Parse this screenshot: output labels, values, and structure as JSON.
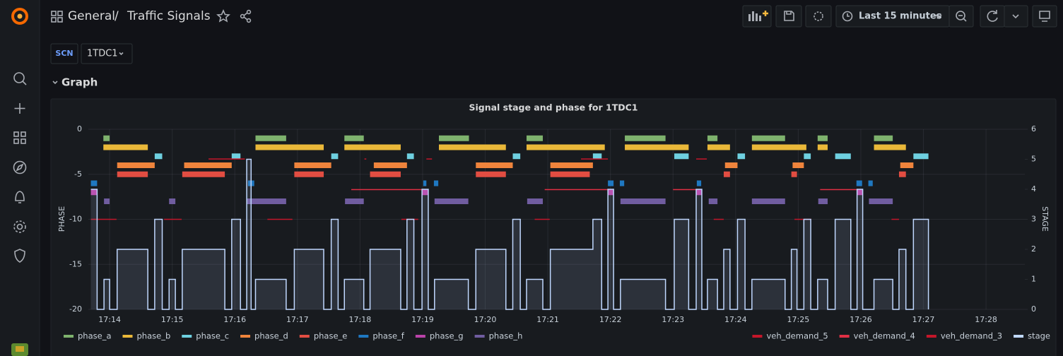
{
  "header": {
    "breadcrumb": [
      "General",
      "Traffic Signals"
    ],
    "separator": "/",
    "time_range": "Last 15 minutes"
  },
  "variables": [
    {
      "label": "SCN",
      "value": "1TDC1"
    }
  ],
  "row": {
    "title": "Graph"
  },
  "chart_data": {
    "type": "timeline",
    "title": "Signal stage and phase for 1TDC1",
    "ylabel": "PHASE",
    "y2label": "STAGE",
    "xlim": [
      13.66,
      28.62
    ],
    "xticks": [
      {
        "value": 14,
        "label": "17:14"
      },
      {
        "value": 15,
        "label": "17:15"
      },
      {
        "value": 16,
        "label": "17:16"
      },
      {
        "value": 17,
        "label": "17:17"
      },
      {
        "value": 18,
        "label": "17:18"
      },
      {
        "value": 19,
        "label": "17:19"
      },
      {
        "value": 20,
        "label": "17:20"
      },
      {
        "value": 21,
        "label": "17:21"
      },
      {
        "value": 22,
        "label": "17:22"
      },
      {
        "value": 23,
        "label": "17:23"
      },
      {
        "value": 24,
        "label": "17:24"
      },
      {
        "value": 25,
        "label": "17:25"
      },
      {
        "value": 26,
        "label": "17:26"
      },
      {
        "value": 27,
        "label": "17:27"
      },
      {
        "value": 28,
        "label": "17:28"
      }
    ],
    "ylim": [
      -20,
      0
    ],
    "yticks": [
      0,
      -5,
      -10,
      -15,
      -20
    ],
    "y2lim": [
      0,
      6
    ],
    "y2ticks": [
      0,
      1,
      2,
      3,
      4,
      5,
      6
    ],
    "grid": true,
    "legend": "bottom",
    "series": [
      {
        "name": "phase_a",
        "color": "#7EB26D",
        "style": "bar",
        "level": -1,
        "segments": [
          [
            13.9,
            14.0
          ],
          [
            16.33,
            16.82
          ],
          [
            17.75,
            18.06
          ],
          [
            19.26,
            19.74
          ],
          [
            20.66,
            20.92
          ],
          [
            22.23,
            22.88
          ],
          [
            23.55,
            23.71
          ],
          [
            24.26,
            24.79
          ],
          [
            25.31,
            25.47
          ],
          [
            26.21,
            26.51
          ]
        ]
      },
      {
        "name": "phase_b",
        "color": "#EAB839",
        "style": "bar",
        "level": -2,
        "segments": [
          [
            13.9,
            14.61
          ],
          [
            16.33,
            17.42
          ],
          [
            17.75,
            18.65
          ],
          [
            19.26,
            20.33
          ],
          [
            20.66,
            21.91
          ],
          [
            22.23,
            23.25
          ],
          [
            23.55,
            23.91
          ],
          [
            24.26,
            25.13
          ],
          [
            25.31,
            25.47
          ],
          [
            26.21,
            26.72
          ]
        ]
      },
      {
        "name": "phase_c",
        "color": "#6ED0E0",
        "style": "bar",
        "level": -3,
        "segments": [
          [
            14.72,
            14.84
          ],
          [
            15.95,
            16.09
          ],
          [
            17.54,
            17.65
          ],
          [
            18.75,
            18.86
          ],
          [
            20.44,
            20.56
          ],
          [
            21.72,
            21.86
          ],
          [
            23.02,
            23.25
          ],
          [
            24.03,
            24.15
          ],
          [
            25.09,
            25.2
          ],
          [
            25.59,
            25.84
          ],
          [
            26.84,
            27.08
          ]
        ]
      },
      {
        "name": "phase_d",
        "color": "#EF843C",
        "style": "bar",
        "level": -4,
        "segments": [
          [
            14.12,
            14.72
          ],
          [
            15.19,
            15.95
          ],
          [
            16.95,
            17.54
          ],
          [
            18.22,
            18.75
          ],
          [
            19.85,
            20.44
          ],
          [
            21.04,
            21.72
          ],
          [
            23.83,
            24.03
          ],
          [
            24.91,
            25.09
          ],
          [
            26.63,
            26.84
          ]
        ]
      },
      {
        "name": "phase_e",
        "color": "#E24D42",
        "style": "bar",
        "level": -5,
        "segments": [
          [
            14.12,
            14.61
          ],
          [
            15.16,
            15.84
          ],
          [
            16.95,
            17.42
          ],
          [
            18.16,
            18.65
          ],
          [
            19.85,
            20.33
          ],
          [
            21.04,
            21.67
          ],
          [
            23.81,
            23.91
          ],
          [
            24.89,
            24.98
          ],
          [
            26.61,
            26.72
          ]
        ]
      },
      {
        "name": "phase_f",
        "color": "#1F78C1",
        "style": "bar",
        "level": -6,
        "segments": [
          [
            13.7,
            13.8
          ],
          [
            16.21,
            16.31
          ],
          [
            19.01,
            19.06
          ],
          [
            19.18,
            19.25
          ],
          [
            21.96,
            22.05
          ],
          [
            22.15,
            22.22
          ],
          [
            23.38,
            23.45
          ],
          [
            25.93,
            26.02
          ],
          [
            26.12,
            26.19
          ]
        ]
      },
      {
        "name": "phase_g",
        "color": "#BA43A9",
        "style": "bar",
        "level": -7,
        "segments": [
          [
            13.7,
            13.8
          ],
          [
            18.99,
            19.09
          ],
          [
            21.96,
            22.05
          ],
          [
            23.37,
            23.46
          ],
          [
            25.94,
            26.03
          ]
        ]
      },
      {
        "name": "phase_h",
        "color": "#705DA0",
        "style": "bar",
        "level": -8,
        "segments": [
          [
            13.91,
            14.0
          ],
          [
            14.95,
            15.05
          ],
          [
            16.19,
            16.82
          ],
          [
            17.76,
            18.06
          ],
          [
            19.19,
            19.73
          ],
          [
            20.67,
            20.92
          ],
          [
            22.16,
            22.88
          ],
          [
            23.57,
            23.71
          ],
          [
            24.26,
            24.79
          ],
          [
            25.32,
            25.47
          ],
          [
            26.13,
            26.51
          ]
        ]
      },
      {
        "name": "veh_demand_5",
        "color": "#C4162A",
        "style": "line",
        "level": -3.3,
        "segments": [
          [
            15.58,
            16.16
          ],
          [
            18.07,
            18.1
          ],
          [
            19.06,
            19.15
          ],
          [
            21.53,
            21.96
          ],
          [
            23.37,
            23.54
          ]
        ]
      },
      {
        "name": "veh_demand_4",
        "color": "#E02F44",
        "style": "line",
        "level": -6.7,
        "segments": [
          [
            17.86,
            19.01
          ],
          [
            20.95,
            21.96
          ],
          [
            23.0,
            23.37
          ],
          [
            25.35,
            25.94
          ]
        ]
      },
      {
        "name": "veh_demand_3",
        "color": "#C4162A",
        "style": "line",
        "level": -10,
        "segments": [
          [
            13.7,
            14.11
          ],
          [
            14.87,
            15.15
          ],
          [
            16.52,
            16.92
          ],
          [
            18.66,
            18.93
          ],
          [
            20.79,
            21.03
          ],
          [
            23.65,
            23.81
          ],
          [
            24.94,
            25.21
          ],
          [
            26.49,
            26.61
          ]
        ]
      },
      {
        "name": "stage",
        "color": "#C0D8FF",
        "style": "step",
        "axis": "y2",
        "x": [
          13.7,
          13.8,
          13.91,
          14.0,
          14.12,
          14.61,
          14.72,
          14.84,
          14.95,
          15.05,
          15.16,
          15.84,
          15.95,
          16.09,
          16.19,
          16.26,
          16.33,
          16.82,
          16.95,
          17.42,
          17.54,
          17.65,
          17.75,
          18.06,
          18.16,
          18.65,
          18.75,
          18.86,
          18.99,
          19.09,
          19.19,
          19.73,
          19.85,
          20.33,
          20.44,
          20.56,
          20.66,
          20.92,
          21.04,
          21.72,
          21.86,
          21.96,
          22.05,
          22.16,
          22.88,
          23.02,
          23.25,
          23.37,
          23.46,
          23.55,
          23.71,
          23.81,
          23.91,
          24.03,
          24.15,
          24.26,
          24.79,
          24.89,
          24.98,
          25.09,
          25.2,
          25.31,
          25.47,
          25.59,
          25.84,
          25.94,
          26.03,
          26.21,
          26.51,
          26.61,
          26.72,
          26.84,
          27.08
        ],
        "values": [
          4,
          0,
          1,
          0,
          2,
          0,
          3,
          0,
          1,
          0,
          2,
          0,
          3,
          0,
          5,
          0,
          1,
          0,
          2,
          0,
          3,
          0,
          1,
          0,
          2,
          0,
          3,
          0,
          4,
          0,
          1,
          0,
          2,
          0,
          3,
          0,
          1,
          0,
          2,
          3,
          0,
          4,
          0,
          1,
          0,
          3,
          0,
          4,
          0,
          1,
          0,
          2,
          0,
          3,
          0,
          1,
          0,
          2,
          0,
          3,
          0,
          1,
          0,
          3,
          0,
          4,
          0,
          1,
          0,
          2,
          0,
          3,
          0
        ]
      }
    ]
  }
}
